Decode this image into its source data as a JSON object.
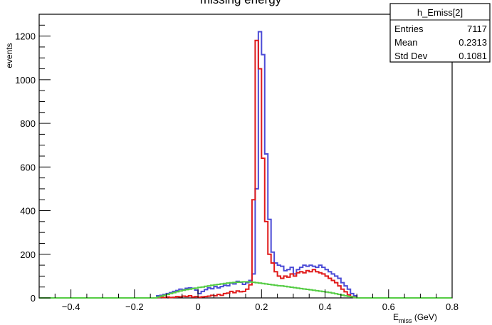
{
  "chart_data": {
    "type": "histogram",
    "title": "missing energy",
    "xlabel_main": "E",
    "xlabel_sub": "miss",
    "xlabel_unit": " (GeV)",
    "ylabel": "events",
    "xlim": [
      -0.5,
      0.8
    ],
    "ylim": [
      0,
      1300
    ],
    "x_ticks": [
      -0.4,
      -0.2,
      0,
      0.2,
      0.4,
      0.6,
      0.8
    ],
    "x_tick_labels": [
      "−0.4",
      "−0.2",
      "0",
      "0.2",
      "0.4",
      "0.6",
      "0.8"
    ],
    "y_ticks": [
      0,
      200,
      400,
      600,
      800,
      1000,
      1200
    ],
    "y_tick_labels": [
      "0",
      "200",
      "400",
      "600",
      "800",
      "1000",
      "1200"
    ],
    "grid": false,
    "stats_box": {
      "name": "h_Emiss[2]",
      "rows": [
        {
          "label": "Entries",
          "value": "7117"
        },
        {
          "label": "Mean",
          "value": "0.2313"
        },
        {
          "label": "Std Dev",
          "value": "0.1081"
        }
      ]
    },
    "series": [
      {
        "color": "#4b4bd6",
        "bins": [
          [
            -0.14,
            0
          ],
          [
            -0.13,
            10
          ],
          [
            -0.12,
            12
          ],
          [
            -0.11,
            16
          ],
          [
            -0.1,
            20
          ],
          [
            -0.09,
            24
          ],
          [
            -0.08,
            30
          ],
          [
            -0.07,
            34
          ],
          [
            -0.06,
            40
          ],
          [
            -0.05,
            38
          ],
          [
            -0.04,
            44
          ],
          [
            -0.03,
            46
          ],
          [
            -0.02,
            44
          ],
          [
            -0.01,
            36
          ],
          [
            0.0,
            20
          ],
          [
            0.01,
            30
          ],
          [
            0.02,
            38
          ],
          [
            0.03,
            46
          ],
          [
            0.04,
            42
          ],
          [
            0.05,
            52
          ],
          [
            0.06,
            46
          ],
          [
            0.07,
            52
          ],
          [
            0.08,
            58
          ],
          [
            0.09,
            56
          ],
          [
            0.1,
            68
          ],
          [
            0.11,
            64
          ],
          [
            0.12,
            76
          ],
          [
            0.13,
            72
          ],
          [
            0.14,
            62
          ],
          [
            0.15,
            70
          ],
          [
            0.16,
            80
          ],
          [
            0.17,
            110
          ],
          [
            0.18,
            500
          ],
          [
            0.19,
            1220
          ],
          [
            0.2,
            1115
          ],
          [
            0.21,
            660
          ],
          [
            0.22,
            360
          ],
          [
            0.23,
            210
          ],
          [
            0.24,
            160
          ],
          [
            0.25,
            150
          ],
          [
            0.26,
            145
          ],
          [
            0.27,
            125
          ],
          [
            0.28,
            130
          ],
          [
            0.29,
            140
          ],
          [
            0.3,
            110
          ],
          [
            0.31,
            130
          ],
          [
            0.32,
            140
          ],
          [
            0.33,
            150
          ],
          [
            0.34,
            145
          ],
          [
            0.35,
            150
          ],
          [
            0.36,
            145
          ],
          [
            0.37,
            140
          ],
          [
            0.38,
            150
          ],
          [
            0.39,
            140
          ],
          [
            0.4,
            130
          ],
          [
            0.41,
            120
          ],
          [
            0.42,
            110
          ],
          [
            0.43,
            100
          ],
          [
            0.44,
            90
          ],
          [
            0.45,
            70
          ],
          [
            0.46,
            55
          ],
          [
            0.47,
            40
          ],
          [
            0.48,
            20
          ],
          [
            0.49,
            10
          ],
          [
            0.5,
            0
          ]
        ]
      },
      {
        "color": "#e01b1b",
        "bins": [
          [
            -0.14,
            0
          ],
          [
            -0.13,
            2
          ],
          [
            -0.12,
            3
          ],
          [
            -0.11,
            2
          ],
          [
            -0.1,
            4
          ],
          [
            -0.09,
            2
          ],
          [
            -0.08,
            3
          ],
          [
            -0.07,
            6
          ],
          [
            -0.06,
            5
          ],
          [
            -0.05,
            8
          ],
          [
            -0.04,
            6
          ],
          [
            -0.03,
            10
          ],
          [
            -0.02,
            4
          ],
          [
            -0.01,
            6
          ],
          [
            0.0,
            3
          ],
          [
            0.01,
            5
          ],
          [
            0.02,
            6
          ],
          [
            0.03,
            8
          ],
          [
            0.04,
            12
          ],
          [
            0.05,
            10
          ],
          [
            0.06,
            16
          ],
          [
            0.07,
            12
          ],
          [
            0.08,
            20
          ],
          [
            0.09,
            22
          ],
          [
            0.1,
            30
          ],
          [
            0.11,
            24
          ],
          [
            0.12,
            32
          ],
          [
            0.13,
            28
          ],
          [
            0.14,
            30
          ],
          [
            0.15,
            40
          ],
          [
            0.16,
            60
          ],
          [
            0.17,
            450
          ],
          [
            0.18,
            1180
          ],
          [
            0.19,
            1050
          ],
          [
            0.2,
            640
          ],
          [
            0.21,
            350
          ],
          [
            0.22,
            200
          ],
          [
            0.23,
            160
          ],
          [
            0.24,
            120
          ],
          [
            0.25,
            100
          ],
          [
            0.26,
            90
          ],
          [
            0.27,
            100
          ],
          [
            0.28,
            95
          ],
          [
            0.29,
            110
          ],
          [
            0.3,
            100
          ],
          [
            0.31,
            115
          ],
          [
            0.32,
            120
          ],
          [
            0.33,
            115
          ],
          [
            0.34,
            125
          ],
          [
            0.35,
            120
          ],
          [
            0.36,
            130
          ],
          [
            0.37,
            120
          ],
          [
            0.38,
            115
          ],
          [
            0.39,
            110
          ],
          [
            0.4,
            100
          ],
          [
            0.41,
            90
          ],
          [
            0.42,
            80
          ],
          [
            0.43,
            70
          ],
          [
            0.44,
            55
          ],
          [
            0.45,
            40
          ],
          [
            0.46,
            28
          ],
          [
            0.47,
            14
          ],
          [
            0.48,
            6
          ],
          [
            0.49,
            3
          ],
          [
            0.5,
            0
          ]
        ]
      },
      {
        "color": "#55cc44",
        "bins": [
          [
            -0.14,
            0
          ],
          [
            -0.13,
            4
          ],
          [
            -0.12,
            8
          ],
          [
            -0.11,
            12
          ],
          [
            -0.1,
            16
          ],
          [
            -0.09,
            20
          ],
          [
            -0.08,
            24
          ],
          [
            -0.07,
            28
          ],
          [
            -0.06,
            32
          ],
          [
            -0.05,
            35
          ],
          [
            -0.04,
            38
          ],
          [
            -0.03,
            40
          ],
          [
            -0.02,
            43
          ],
          [
            -0.01,
            45
          ],
          [
            0.0,
            48
          ],
          [
            0.01,
            50
          ],
          [
            0.02,
            53
          ],
          [
            0.03,
            55
          ],
          [
            0.04,
            58
          ],
          [
            0.05,
            60
          ],
          [
            0.06,
            62
          ],
          [
            0.07,
            64
          ],
          [
            0.08,
            66
          ],
          [
            0.09,
            68
          ],
          [
            0.1,
            70
          ],
          [
            0.11,
            71
          ],
          [
            0.12,
            72
          ],
          [
            0.13,
            73
          ],
          [
            0.14,
            74
          ],
          [
            0.15,
            74
          ],
          [
            0.16,
            73
          ],
          [
            0.17,
            72
          ],
          [
            0.18,
            70
          ],
          [
            0.19,
            68
          ],
          [
            0.2,
            66
          ],
          [
            0.21,
            64
          ],
          [
            0.22,
            62
          ],
          [
            0.23,
            60
          ],
          [
            0.24,
            58
          ],
          [
            0.25,
            56
          ],
          [
            0.26,
            55
          ],
          [
            0.27,
            53
          ],
          [
            0.28,
            51
          ],
          [
            0.29,
            49
          ],
          [
            0.3,
            47
          ],
          [
            0.31,
            45
          ],
          [
            0.32,
            43
          ],
          [
            0.33,
            41
          ],
          [
            0.34,
            39
          ],
          [
            0.35,
            37
          ],
          [
            0.36,
            35
          ],
          [
            0.37,
            33
          ],
          [
            0.38,
            31
          ],
          [
            0.39,
            29
          ],
          [
            0.4,
            27
          ],
          [
            0.41,
            25
          ],
          [
            0.42,
            22
          ],
          [
            0.43,
            19
          ],
          [
            0.44,
            16
          ],
          [
            0.45,
            13
          ],
          [
            0.46,
            10
          ],
          [
            0.47,
            7
          ],
          [
            0.48,
            5
          ],
          [
            0.49,
            2
          ],
          [
            0.5,
            0
          ]
        ]
      }
    ]
  }
}
